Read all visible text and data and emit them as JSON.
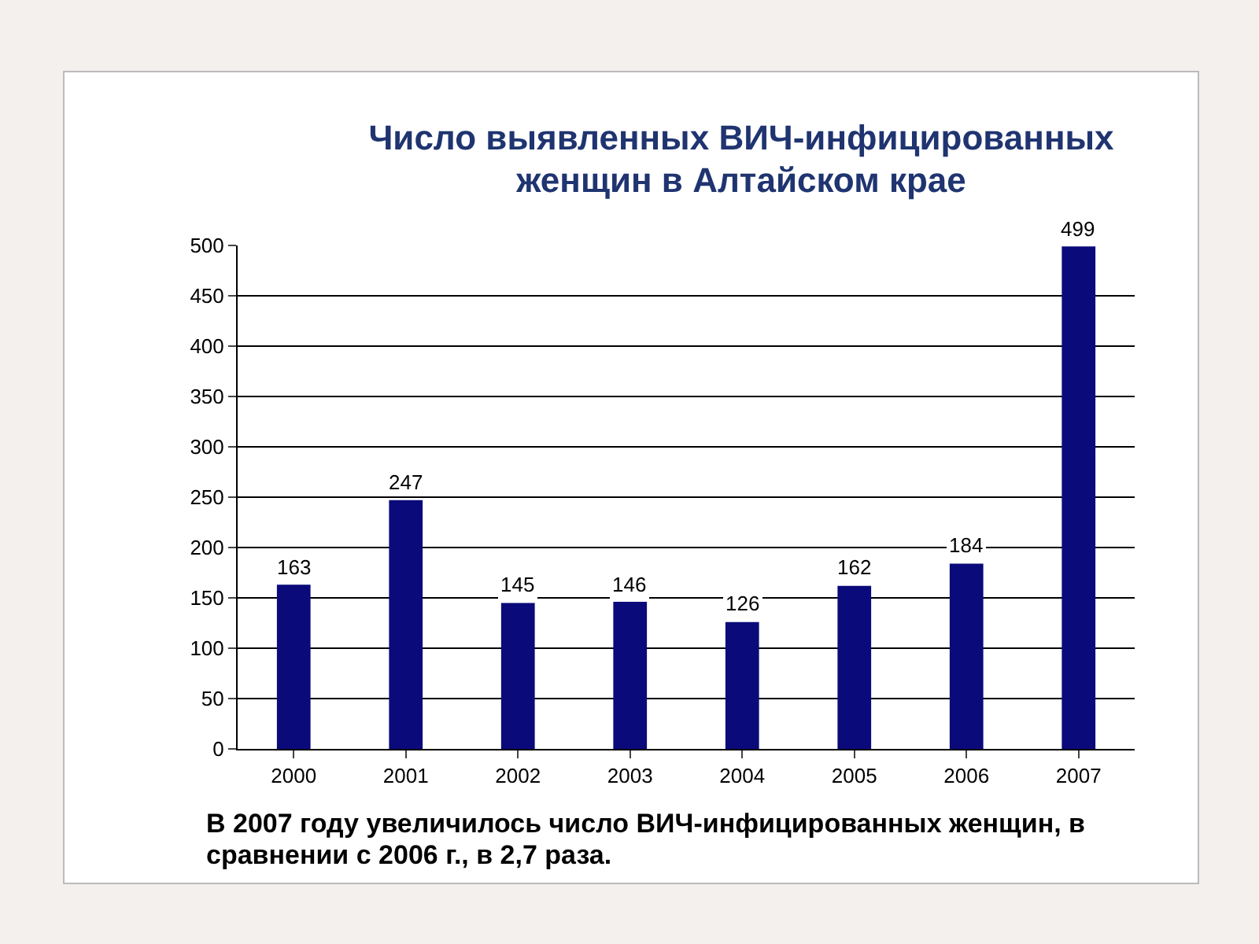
{
  "chart_data": {
    "type": "bar",
    "title": "Число выявленных ВИЧ-инфицированных женщин в Алтайском крае",
    "categories": [
      "2000",
      "2001",
      "2002",
      "2003",
      "2004",
      "2005",
      "2006",
      "2007"
    ],
    "values": [
      163,
      247,
      145,
      146,
      126,
      162,
      184,
      499
    ],
    "color": "#0a0a7a",
    "ylim": [
      0,
      500
    ],
    "yticks": [
      0,
      50,
      100,
      150,
      200,
      250,
      300,
      350,
      400,
      450,
      500
    ],
    "grid": "y",
    "data_labels": true,
    "legend": false,
    "annotations": [
      "В 2007 году увеличилось число ВИЧ-инфицированных женщин, в сравнении с 2006 г., в 2,7 раза."
    ]
  }
}
